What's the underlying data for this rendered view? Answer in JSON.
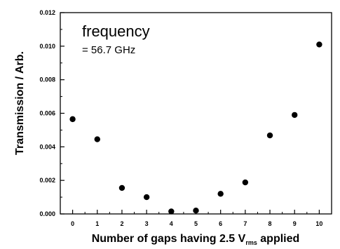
{
  "chart_data": {
    "type": "scatter",
    "title": "",
    "xlabel_main": "Number of gaps having 2.5 V",
    "xlabel_sub": "rms",
    "xlabel_tail": " applied",
    "ylabel": "Transmission / Arb.",
    "annotation_line1": "frequency",
    "annotation_line2": "= 56.7 GHz",
    "xlim": [
      -0.5,
      10.5
    ],
    "ylim": [
      0,
      0.012
    ],
    "x_ticks": [
      0,
      1,
      2,
      3,
      4,
      5,
      6,
      7,
      8,
      9,
      10
    ],
    "x_tick_labels": [
      "0",
      "1",
      "2",
      "3",
      "4",
      "5",
      "6",
      "7",
      "8",
      "9",
      "10"
    ],
    "y_ticks": [
      0,
      0.002,
      0.004,
      0.006,
      0.008,
      0.01,
      0.012
    ],
    "y_tick_labels": [
      "0.000",
      "0.002",
      "0.004",
      "0.006",
      "0.008",
      "0.010",
      "0.012"
    ],
    "series": [
      {
        "x": [
          0,
          1,
          2,
          3,
          4,
          5,
          6,
          7,
          8,
          9,
          10
        ],
        "y": [
          0.00565,
          0.00445,
          0.00155,
          0.001,
          0.00015,
          0.0002,
          0.0012,
          0.00188,
          0.00468,
          0.0059,
          0.0101
        ]
      }
    ],
    "grid": false,
    "legend": "none",
    "marker_color": "#000000"
  }
}
